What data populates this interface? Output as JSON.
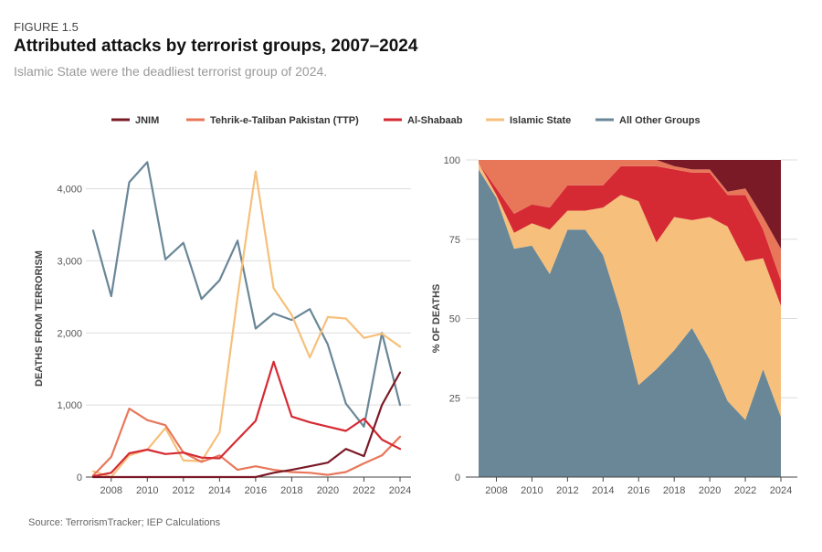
{
  "figure_label": "FIGURE 1.5",
  "title": "Attributed attacks by terrorist groups, 2007–2024",
  "subtitle": "Islamic State were the deadliest terrorist group of 2024.",
  "source": "Source: TerrorismTracker; IEP Calculations",
  "legend": [
    {
      "name": "JNIM",
      "color": "#7a1a26"
    },
    {
      "name": "Tehrik-e-Taliban Pakistan (TTP)",
      "color": "#e8775a"
    },
    {
      "name": "Al-Shabaab",
      "color": "#d52a33"
    },
    {
      "name": "Islamic State",
      "color": "#f6c07c"
    },
    {
      "name": "All Other Groups",
      "color": "#6a8797"
    }
  ],
  "chart_data": [
    {
      "type": "line",
      "ylabel": "DEATHS FROM TERRORISM",
      "ylim": [
        0,
        4400
      ],
      "yticks": [
        0,
        1000,
        2000,
        3000,
        4000
      ],
      "ytick_labels": [
        "0",
        "1,000",
        "2,000",
        "3,000",
        "4,000"
      ],
      "xlim": [
        2007,
        2024
      ],
      "xticks": [
        "2008",
        "2010",
        "2012",
        "2014",
        "2016",
        "2018",
        "2020",
        "2022",
        "2024"
      ],
      "grid": true,
      "x": [
        2007,
        2008,
        2009,
        2010,
        2011,
        2012,
        2013,
        2014,
        2015,
        2016,
        2017,
        2018,
        2019,
        2020,
        2021,
        2022,
        2023,
        2024
      ],
      "series": [
        {
          "name": "All Other Groups",
          "values": [
            3420,
            2510,
            4090,
            4370,
            3020,
            3250,
            2470,
            2730,
            3280,
            2060,
            2270,
            2180,
            2330,
            1840,
            1020,
            700,
            2000,
            1000
          ]
        },
        {
          "name": "Islamic State",
          "values": [
            80,
            0,
            300,
            380,
            680,
            230,
            220,
            620,
            2500,
            4240,
            2620,
            2250,
            1660,
            2220,
            2200,
            1930,
            1990,
            1810
          ]
        },
        {
          "name": "Tehrik-e-Taliban Pakistan (TTP)",
          "values": [
            20,
            280,
            950,
            790,
            720,
            340,
            210,
            300,
            100,
            150,
            100,
            70,
            60,
            30,
            70,
            190,
            300,
            560
          ]
        },
        {
          "name": "Al-Shabaab",
          "values": [
            10,
            60,
            330,
            380,
            320,
            340,
            270,
            260,
            520,
            780,
            1600,
            840,
            760,
            700,
            640,
            810,
            520,
            390
          ]
        },
        {
          "name": "JNIM",
          "values": [
            0,
            0,
            0,
            0,
            0,
            0,
            0,
            0,
            0,
            0,
            60,
            100,
            150,
            200,
            390,
            290,
            1000,
            1450
          ]
        }
      ]
    },
    {
      "type": "area",
      "stacked": true,
      "ylabel": "% OF DEATHS",
      "ylim": [
        0,
        100
      ],
      "yticks": [
        0,
        25,
        50,
        75,
        100
      ],
      "xlim": [
        2007,
        2024
      ],
      "xticks": [
        "2008",
        "2010",
        "2012",
        "2014",
        "2016",
        "2018",
        "2020",
        "2022",
        "2024"
      ],
      "grid": true,
      "x": [
        2007,
        2008,
        2009,
        2010,
        2011,
        2012,
        2013,
        2014,
        2015,
        2016,
        2017,
        2018,
        2019,
        2020,
        2021,
        2022,
        2023,
        2024
      ],
      "series": [
        {
          "name": "All Other Groups",
          "values": [
            97,
            88,
            72,
            73,
            64,
            78,
            78,
            70,
            52,
            29,
            34,
            40,
            47,
            37,
            24,
            18,
            34,
            19
          ]
        },
        {
          "name": "Islamic State",
          "values": [
            2,
            1,
            5,
            7,
            14,
            6,
            6,
            15,
            37,
            58,
            40,
            42,
            34,
            45,
            55,
            50,
            35,
            35
          ]
        },
        {
          "name": "Al-Shabaab",
          "values": [
            0,
            2,
            6,
            6,
            7,
            8,
            8,
            7,
            9,
            11,
            24,
            15,
            15,
            14,
            10,
            21,
            9,
            8
          ]
        },
        {
          "name": "Tehrik-e-Taliban Pakistan (TTP)",
          "values": [
            1,
            9,
            17,
            14,
            15,
            8,
            8,
            8,
            2,
            2,
            2,
            1,
            1,
            1,
            1,
            2,
            4,
            10
          ]
        },
        {
          "name": "JNIM",
          "values": [
            0,
            0,
            0,
            0,
            0,
            0,
            0,
            0,
            0,
            0,
            0,
            2,
            3,
            3,
            10,
            9,
            18,
            28
          ]
        }
      ]
    }
  ]
}
